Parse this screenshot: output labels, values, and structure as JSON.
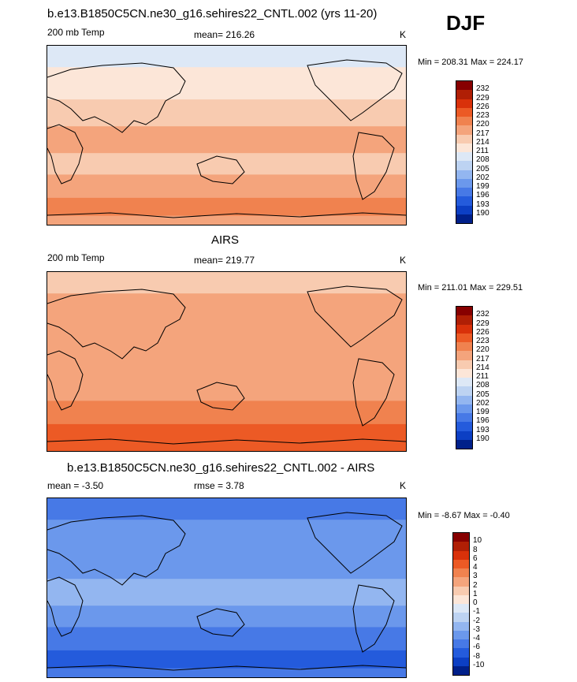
{
  "season": "DJF",
  "chart_data": [
    {
      "type": "heatmap",
      "title": "b.e13.B1850C5CN.ne30_g16.sehires22_CNTL.002 (yrs 11-20)",
      "left_label": "200 mb Temp",
      "stat_label": "mean= 216.26",
      "units": "K",
      "minmax": "Min = 208.31 Max = 224.17",
      "levels": [
        "232",
        "229",
        "226",
        "223",
        "220",
        "217",
        "214",
        "211",
        "208",
        "205",
        "202",
        "199",
        "196",
        "193",
        "190"
      ],
      "colors": [
        "#870000",
        "#b01f05",
        "#d9310a",
        "#ec5a25",
        "#f0824f",
        "#f4a47c",
        "#f8cbb0",
        "#fce6d8",
        "#dde8f6",
        "#bdd3f2",
        "#93b6f0",
        "#6b98ec",
        "#4779e6",
        "#245bdc",
        "#0c3fc4",
        "#00208a"
      ],
      "bands": [
        {
          "zone": "arctic",
          "level": "211"
        },
        {
          "zone": "north-midlatitude",
          "level": "214"
        },
        {
          "zone": "north-subtropics",
          "level": "217"
        },
        {
          "zone": "tropics",
          "level": "220"
        },
        {
          "zone": "south-subtropics",
          "level": "217"
        },
        {
          "zone": "south-midlatitude",
          "level": "220"
        },
        {
          "zone": "subantarctic",
          "level": "223"
        },
        {
          "zone": "antarctic",
          "level": "220"
        }
      ]
    },
    {
      "type": "heatmap",
      "title": "AIRS",
      "left_label": "200 mb Temp",
      "stat_label": "mean= 219.77",
      "units": "K",
      "minmax": "Min = 211.01 Max = 229.51",
      "levels": [
        "232",
        "229",
        "226",
        "223",
        "220",
        "217",
        "214",
        "211",
        "208",
        "205",
        "202",
        "199",
        "196",
        "193",
        "190"
      ],
      "colors": [
        "#870000",
        "#b01f05",
        "#d9310a",
        "#ec5a25",
        "#f0824f",
        "#f4a47c",
        "#f8cbb0",
        "#fce6d8",
        "#dde8f6",
        "#bdd3f2",
        "#93b6f0",
        "#6b98ec",
        "#4779e6",
        "#245bdc",
        "#0c3fc4",
        "#00208a"
      ],
      "bands": [
        {
          "zone": "arctic",
          "level": "217"
        },
        {
          "zone": "north-midlatitude",
          "level": "220"
        },
        {
          "zone": "north-subtropics",
          "level": "220"
        },
        {
          "zone": "tropics",
          "level": "220"
        },
        {
          "zone": "south-subtropics",
          "level": "220"
        },
        {
          "zone": "south-midlatitude",
          "level": "223"
        },
        {
          "zone": "subantarctic",
          "level": "226"
        },
        {
          "zone": "antarctic",
          "level": "226"
        }
      ]
    },
    {
      "type": "heatmap",
      "title": "b.e13.B1850C5CN.ne30_g16.sehires22_CNTL.002 - AIRS",
      "left_label": "mean =  -3.50",
      "stat_label": "rmse =   3.78",
      "units": "K",
      "minmax": "Min =  -8.67 Max =  -0.40",
      "levels": [
        "10",
        "8",
        "6",
        "4",
        "3",
        "2",
        "1",
        "0",
        "-1",
        "-2",
        "-3",
        "-4",
        "-6",
        "-8",
        "-10"
      ],
      "colors": [
        "#870000",
        "#b01f05",
        "#d9310a",
        "#ec5a25",
        "#f0824f",
        "#f4a47c",
        "#f8cbb0",
        "#fce6d8",
        "#dde8f6",
        "#bdd3f2",
        "#93b6f0",
        "#6b98ec",
        "#4779e6",
        "#245bdc",
        "#0c3fc4",
        "#00208a"
      ],
      "bands": [
        {
          "zone": "arctic",
          "level": "-4"
        },
        {
          "zone": "north-midlatitude",
          "level": "-3"
        },
        {
          "zone": "north-subtropics",
          "level": "-3"
        },
        {
          "zone": "tropics",
          "level": "-2"
        },
        {
          "zone": "south-subtropics",
          "level": "-3"
        },
        {
          "zone": "south-midlatitude",
          "level": "-4"
        },
        {
          "zone": "subantarctic",
          "level": "-6"
        },
        {
          "zone": "antarctic",
          "level": "-4"
        }
      ]
    }
  ]
}
